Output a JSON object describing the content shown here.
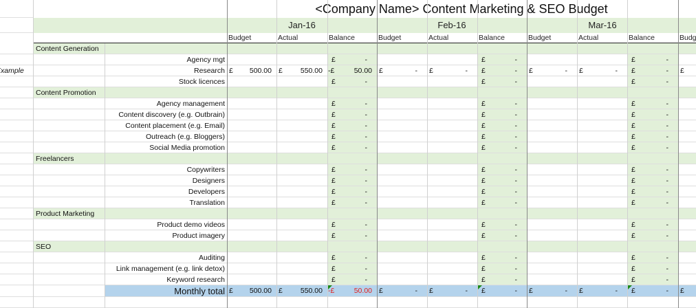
{
  "sheet": {
    "title": "<Company Name> Content Marketing & SEO Budget",
    "example_label": "Example",
    "months": [
      "Jan-16",
      "Feb-16",
      "Mar-16"
    ],
    "col_headers": {
      "budget": "Budget",
      "actual": "Actual",
      "balance": "Balance",
      "next_budget_partial": "Budg"
    },
    "currency": "£",
    "dash": "-",
    "sections": [
      {
        "title": "Content Generation",
        "items": [
          "Agency mgt",
          "Research",
          "Stock licences"
        ]
      },
      {
        "title": "Content Promotion",
        "items": [
          "Agency management",
          "Content discovery (e.g. Outbrain)",
          "Content placement (e.g. Email)",
          "Outreach (e.g. Bloggers)",
          "Social Media promotion"
        ]
      },
      {
        "title": "Freelancers",
        "items": [
          "Copywriters",
          "Designers",
          "Developers",
          "Translation"
        ]
      },
      {
        "title": "Product Marketing",
        "items": [
          "Product demo videos",
          "Product imagery"
        ]
      },
      {
        "title": "SEO",
        "items": [
          "Auditing",
          "Link management (e.g. link detox)",
          "Keyword research"
        ]
      }
    ],
    "example_row": {
      "budget": "500.00",
      "actual": "550.00",
      "balance_prefix": "-£",
      "balance": "50.00"
    },
    "total": {
      "label": "Monthly total",
      "budget": "500.00",
      "actual": "550.00",
      "balance_prefix": "-£",
      "balance": "50.00"
    }
  }
}
